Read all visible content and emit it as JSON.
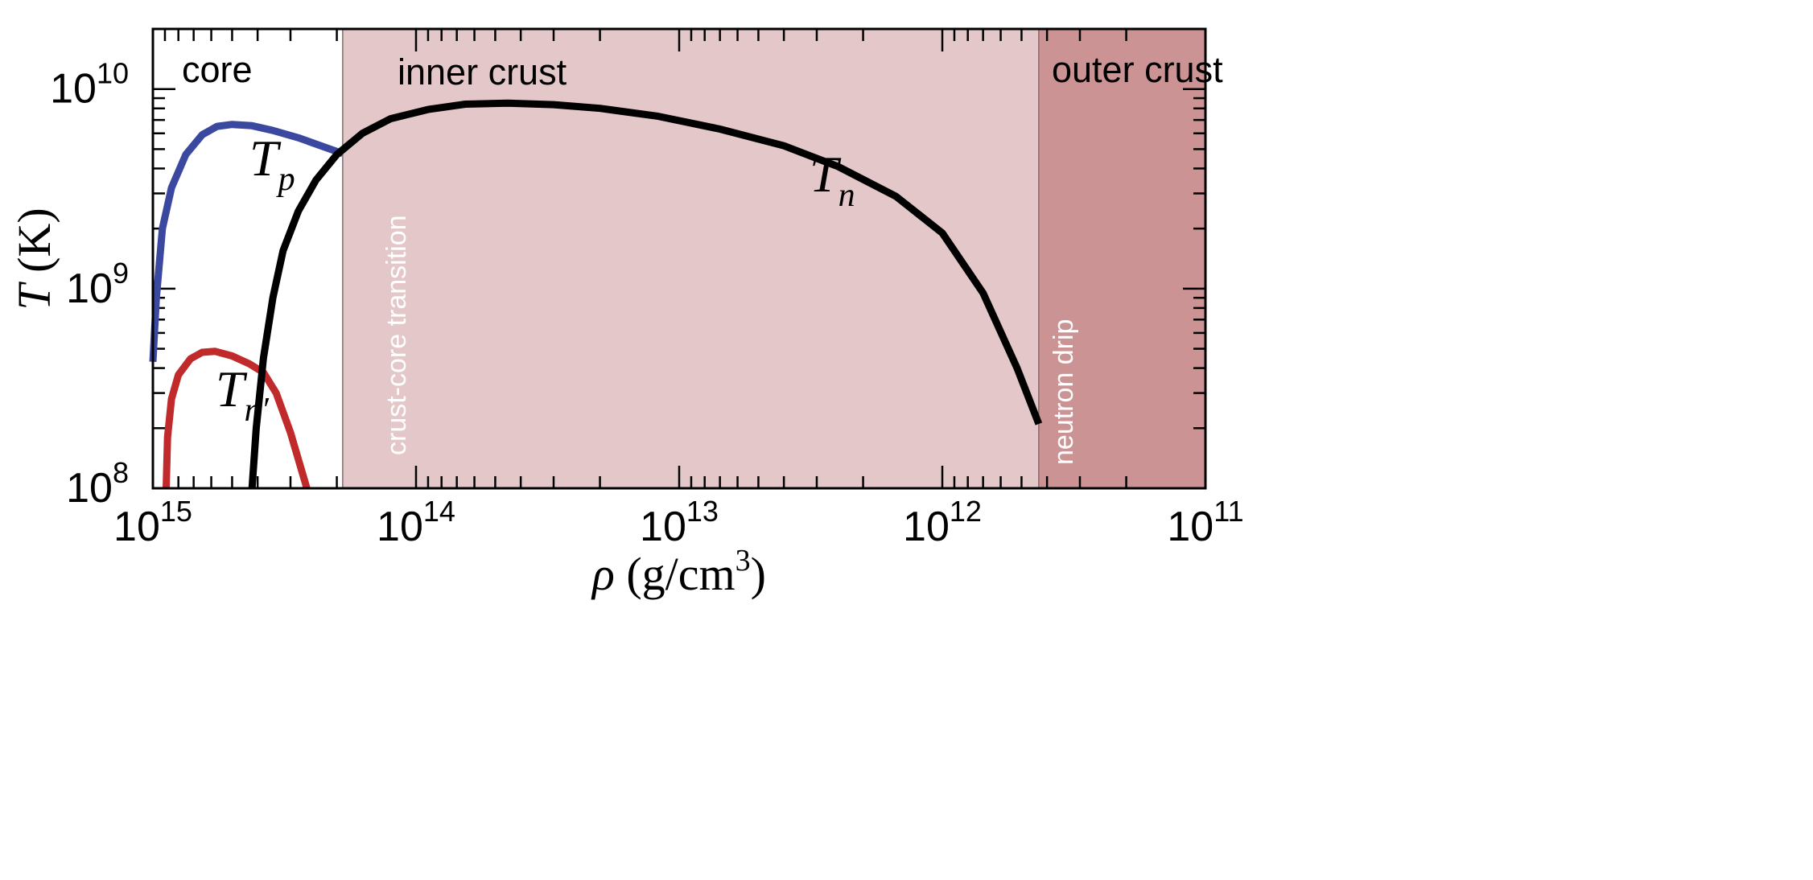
{
  "chart_data": {
    "type": "line",
    "x_scale": "log",
    "y_scale": "log",
    "x_reversed": true,
    "xlim": [
      1000000000000000.0,
      100000000000.0
    ],
    "ylim": [
      100000000.0,
      20000000000.0
    ],
    "xlabel": {
      "sym": "ρ",
      "text": " (g/cm",
      "sup": "3",
      "tail": ")"
    },
    "ylabel": {
      "sym": "T",
      "text": " (K)"
    },
    "x_ticks": [
      {
        "value": 1000000000000000.0,
        "base": "10",
        "exp": "15"
      },
      {
        "value": 100000000000000.0,
        "base": "10",
        "exp": "14"
      },
      {
        "value": 10000000000000.0,
        "base": "10",
        "exp": "13"
      },
      {
        "value": 1000000000000.0,
        "base": "10",
        "exp": "12"
      },
      {
        "value": 100000000000.0,
        "base": "10",
        "exp": "11"
      }
    ],
    "y_ticks": [
      {
        "value": 100000000.0,
        "base": "10",
        "exp": "8"
      },
      {
        "value": 1000000000.0,
        "base": "10",
        "exp": "9"
      },
      {
        "value": 10000000000.0,
        "base": "10",
        "exp": "10"
      }
    ],
    "regions": [
      {
        "name": "core",
        "x_from": 1000000000000000.0,
        "x_to": 190000000000000.0,
        "color": "#ffffff"
      },
      {
        "name": "inner crust",
        "x_from": 190000000000000.0,
        "x_to": 430000000000.0,
        "color": "#e4c8c9"
      },
      {
        "name": "outer crust",
        "x_from": 430000000000.0,
        "x_to": 100000000000.0,
        "color": "#cc9394"
      }
    ],
    "boundaries": [
      {
        "label": "crust-core transition",
        "x": 190000000000000.0
      },
      {
        "label": "neutron drip",
        "x": 430000000000.0
      }
    ],
    "series": [
      {
        "name": "T_p",
        "label": {
          "sym": "T",
          "sub": "p"
        },
        "color": "#3b48a0",
        "points": [
          [
            1000000000000000.0,
            430000000.0
          ],
          [
            970000000000000.0,
            900000000.0
          ],
          [
            920000000000000.0,
            2000000000.0
          ],
          [
            850000000000000.0,
            3200000000.0
          ],
          [
            750000000000000.0,
            4700000000.0
          ],
          [
            650000000000000.0,
            5900000000.0
          ],
          [
            570000000000000.0,
            6500000000.0
          ],
          [
            500000000000000.0,
            6650000000.0
          ],
          [
            420000000000000.0,
            6550000000.0
          ],
          [
            350000000000000.0,
            6200000000.0
          ],
          [
            280000000000000.0,
            5700000000.0
          ],
          [
            230000000000000.0,
            5200000000.0
          ],
          [
            190000000000000.0,
            4750000000.0
          ]
        ]
      },
      {
        "name": "T_n'",
        "label": {
          "sym": "T",
          "sub": "n′"
        },
        "color": "#c12a2b",
        "points": [
          [
            890000000000000.0,
            100000000.0
          ],
          [
            880000000000000.0,
            180000000.0
          ],
          [
            850000000000000.0,
            280000000.0
          ],
          [
            800000000000000.0,
            370000000.0
          ],
          [
            720000000000000.0,
            445000000.0
          ],
          [
            650000000000000.0,
            480000000.0
          ],
          [
            580000000000000.0,
            485000000.0
          ],
          [
            500000000000000.0,
            460000000.0
          ],
          [
            430000000000000.0,
            420000000.0
          ],
          [
            380000000000000.0,
            380000000.0
          ],
          [
            340000000000000.0,
            300000000.0
          ],
          [
            300000000000000.0,
            190000000.0
          ],
          [
            260000000000000.0,
            100000000.0
          ]
        ]
      },
      {
        "name": "T_n",
        "label": {
          "sym": "T",
          "sub": "n"
        },
        "color": "#000000",
        "points": [
          [
            420000000000000.0,
            100000000.0
          ],
          [
            405000000000000.0,
            200000000.0
          ],
          [
            380000000000000.0,
            450000000.0
          ],
          [
            350000000000000.0,
            900000000.0
          ],
          [
            320000000000000.0,
            1550000000.0
          ],
          [
            280000000000000.0,
            2450000000.0
          ],
          [
            240000000000000.0,
            3500000000.0
          ],
          [
            200000000000000.0,
            4700000000.0
          ],
          [
            160000000000000.0,
            6000000000.0
          ],
          [
            125000000000000.0,
            7100000000.0
          ],
          [
            90000000000000.0,
            7900000000.0
          ],
          [
            65000000000000.0,
            8400000000.0
          ],
          [
            45000000000000.0,
            8500000000.0
          ],
          [
            30000000000000.0,
            8350000000.0
          ],
          [
            20000000000000.0,
            8000000000.0
          ],
          [
            12000000000000.0,
            7300000000.0
          ],
          [
            7000000000000.0,
            6300000000.0
          ],
          [
            4000000000000.0,
            5200000000.0
          ],
          [
            2500000000000.0,
            4100000000.0
          ],
          [
            1500000000000.0,
            2900000000.0
          ],
          [
            1000000000000.0,
            1900000000.0
          ],
          [
            700000000000.0,
            950000000.0
          ],
          [
            520000000000.0,
            400000000.0
          ],
          [
            430000000000.0,
            210000000.0
          ]
        ]
      }
    ]
  }
}
